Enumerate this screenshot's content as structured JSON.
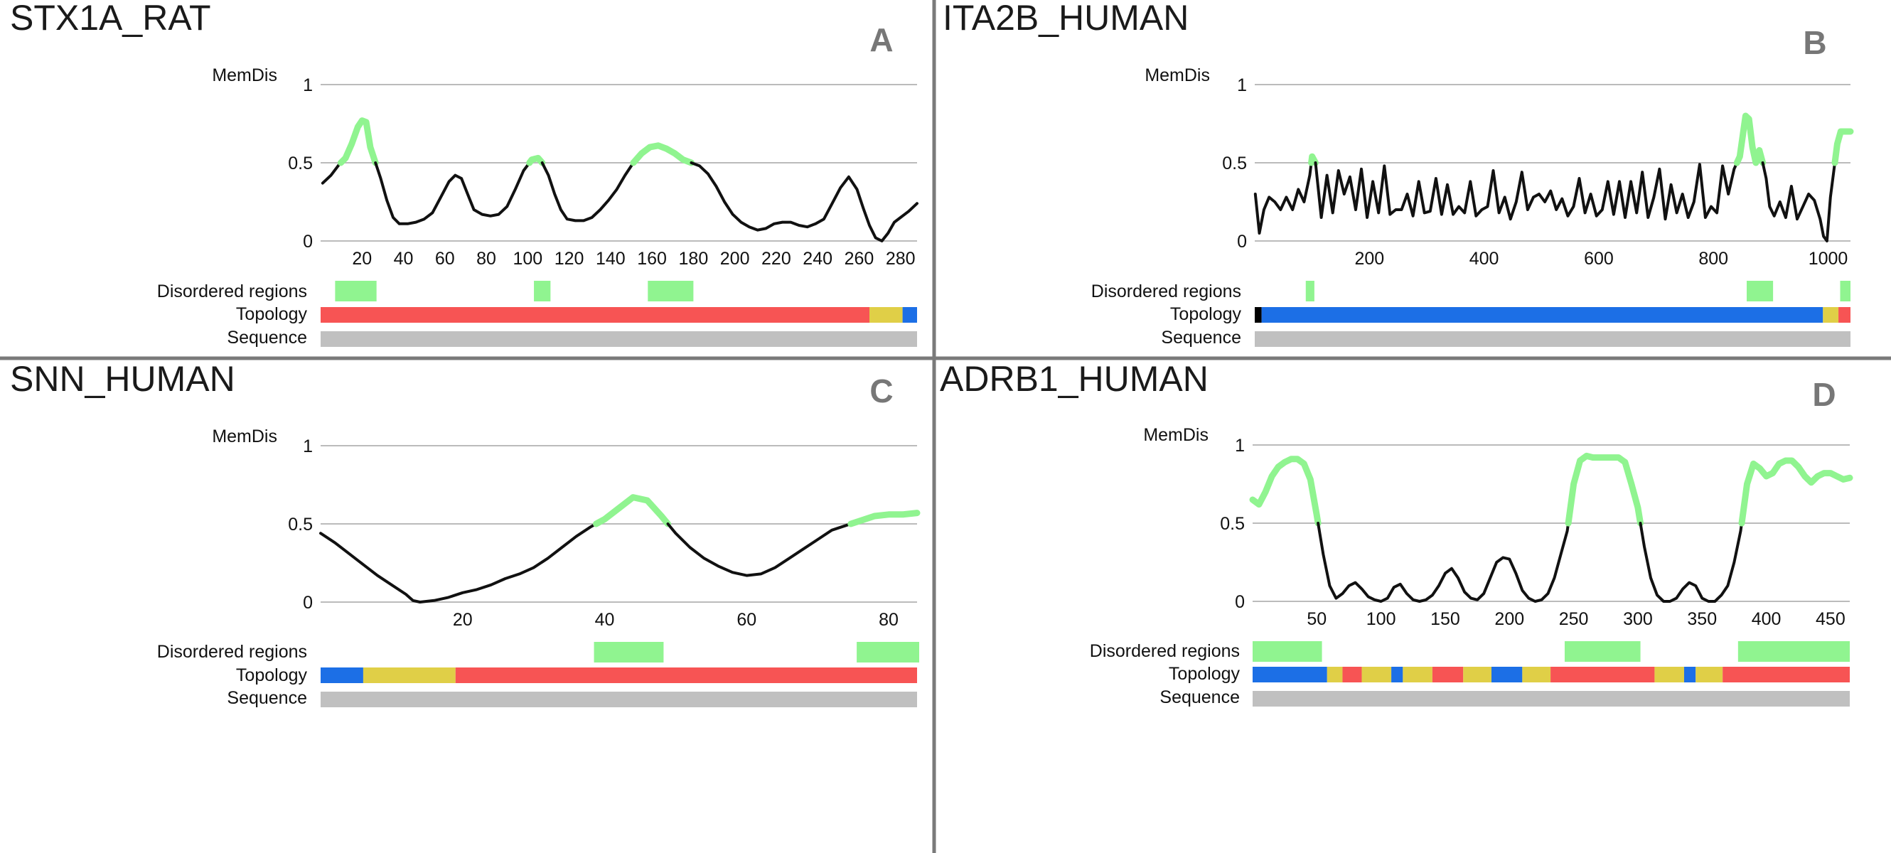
{
  "figure": {
    "divider_color": "#7a7a7a",
    "colors": {
      "curve": "#111111",
      "disordered": "#90f490",
      "sequence": "#c0c0c0",
      "gridline": "#bbbbbb",
      "topology": {
        "red": "#f75454",
        "yellow": "#e0cf47",
        "blue": "#1c6fe6",
        "black": "#000000"
      }
    },
    "track_labels": {
      "disordered": "Disordered regions",
      "topology": "Topology",
      "sequence": "Sequence"
    }
  },
  "chart_data": [
    {
      "type": "line",
      "panel_letter": "A",
      "protein": "STX1A_RAT",
      "ylabel": "MemDis",
      "ylim": [
        0,
        1
      ],
      "yticks": [
        0,
        0.5,
        1
      ],
      "ytick_labels": [
        "0",
        "0.5",
        "1"
      ],
      "xlim": [
        0,
        288
      ],
      "xticks": [
        20,
        40,
        60,
        80,
        100,
        120,
        140,
        160,
        180,
        200,
        220,
        240,
        260,
        280
      ],
      "xtick_labels": [
        "20",
        "40",
        "60",
        "80",
        "100",
        "120",
        "140",
        "160",
        "180",
        "200",
        "220",
        "240",
        "260",
        "280"
      ],
      "threshold": 0.5,
      "series": [
        {
          "name": "MemDis",
          "x": [
            1,
            5,
            9,
            12,
            15,
            18,
            20,
            22,
            24,
            26,
            29,
            32,
            35,
            38,
            42,
            46,
            50,
            54,
            58,
            62,
            65,
            68,
            71,
            74,
            78,
            82,
            86,
            90,
            94,
            98,
            102,
            105,
            107,
            110,
            113,
            116,
            119,
            123,
            127,
            131,
            135,
            139,
            143,
            147,
            151,
            155,
            159,
            163,
            167,
            171,
            175,
            179,
            183,
            187,
            191,
            195,
            199,
            203,
            207,
            211,
            215,
            219,
            223,
            227,
            231,
            235,
            239,
            243,
            247,
            251,
            255,
            259,
            262,
            265,
            268,
            271,
            274,
            277,
            280,
            284,
            288
          ],
          "y": [
            0.37,
            0.42,
            0.49,
            0.53,
            0.62,
            0.73,
            0.77,
            0.76,
            0.6,
            0.52,
            0.4,
            0.26,
            0.15,
            0.11,
            0.11,
            0.12,
            0.14,
            0.18,
            0.28,
            0.38,
            0.42,
            0.4,
            0.3,
            0.2,
            0.17,
            0.16,
            0.17,
            0.22,
            0.33,
            0.45,
            0.52,
            0.53,
            0.5,
            0.42,
            0.3,
            0.2,
            0.14,
            0.13,
            0.13,
            0.15,
            0.2,
            0.26,
            0.33,
            0.42,
            0.5,
            0.56,
            0.6,
            0.61,
            0.59,
            0.56,
            0.52,
            0.5,
            0.48,
            0.43,
            0.35,
            0.25,
            0.17,
            0.12,
            0.09,
            0.07,
            0.08,
            0.11,
            0.12,
            0.12,
            0.1,
            0.09,
            0.11,
            0.14,
            0.24,
            0.34,
            0.41,
            0.33,
            0.21,
            0.1,
            0.02,
            0.0,
            0.05,
            0.12,
            0.15,
            0.19,
            0.24
          ]
        }
      ],
      "disordered_regions": [
        [
          7,
          27
        ],
        [
          103,
          111
        ],
        [
          158,
          180
        ]
      ],
      "topology": [
        {
          "start": 0,
          "end": 265,
          "color": "red"
        },
        {
          "start": 265,
          "end": 281,
          "color": "yellow"
        },
        {
          "start": 281,
          "end": 288,
          "color": "blue"
        }
      ]
    },
    {
      "type": "line",
      "panel_letter": "B",
      "protein": "ITA2B_HUMAN",
      "ylabel": "MemDis",
      "ylim": [
        0,
        1
      ],
      "yticks": [
        0,
        0.5,
        1
      ],
      "ytick_labels": [
        "0",
        "0.5",
        "1"
      ],
      "xlim": [
        0,
        1039
      ],
      "xticks": [
        200,
        400,
        600,
        800,
        1000
      ],
      "xtick_labels": [
        "200",
        "400",
        "600",
        "800",
        "1000"
      ],
      "threshold": 0.5,
      "series": [
        {
          "name": "MemDis",
          "x": [
            1,
            8,
            16,
            25,
            35,
            45,
            55,
            66,
            76,
            86,
            96,
            100,
            106,
            116,
            126,
            136,
            146,
            156,
            166,
            176,
            186,
            196,
            206,
            216,
            226,
            236,
            246,
            256,
            266,
            276,
            286,
            296,
            306,
            316,
            326,
            336,
            346,
            356,
            366,
            376,
            386,
            396,
            406,
            416,
            426,
            436,
            446,
            456,
            466,
            476,
            486,
            496,
            506,
            516,
            526,
            536,
            546,
            556,
            566,
            576,
            586,
            596,
            606,
            616,
            626,
            636,
            646,
            656,
            666,
            676,
            686,
            696,
            706,
            716,
            726,
            736,
            746,
            756,
            766,
            776,
            786,
            796,
            806,
            816,
            826,
            836,
            846,
            856,
            862,
            868,
            874,
            880,
            886,
            892,
            898,
            906,
            916,
            926,
            936,
            946,
            956,
            966,
            976,
            986,
            992,
            998,
            1004,
            1010,
            1016,
            1022,
            1030,
            1039
          ],
          "y": [
            0.3,
            0.05,
            0.2,
            0.28,
            0.25,
            0.2,
            0.28,
            0.2,
            0.33,
            0.25,
            0.42,
            0.54,
            0.5,
            0.15,
            0.42,
            0.18,
            0.45,
            0.3,
            0.41,
            0.2,
            0.46,
            0.15,
            0.38,
            0.18,
            0.48,
            0.17,
            0.2,
            0.2,
            0.3,
            0.16,
            0.38,
            0.18,
            0.19,
            0.4,
            0.17,
            0.36,
            0.17,
            0.22,
            0.18,
            0.38,
            0.16,
            0.2,
            0.22,
            0.45,
            0.18,
            0.28,
            0.14,
            0.25,
            0.44,
            0.2,
            0.28,
            0.3,
            0.25,
            0.32,
            0.2,
            0.27,
            0.16,
            0.22,
            0.4,
            0.18,
            0.3,
            0.16,
            0.2,
            0.38,
            0.17,
            0.38,
            0.15,
            0.38,
            0.18,
            0.44,
            0.15,
            0.28,
            0.46,
            0.14,
            0.36,
            0.18,
            0.3,
            0.15,
            0.25,
            0.49,
            0.15,
            0.22,
            0.18,
            0.48,
            0.3,
            0.46,
            0.54,
            0.8,
            0.78,
            0.6,
            0.5,
            0.58,
            0.5,
            0.4,
            0.22,
            0.16,
            0.25,
            0.15,
            0.35,
            0.14,
            0.22,
            0.3,
            0.26,
            0.14,
            0.03,
            0.0,
            0.28,
            0.45,
            0.62,
            0.7,
            0.7,
            0.7
          ]
        }
      ],
      "disordered_regions": [
        [
          89,
          104
        ],
        [
          858,
          904
        ],
        [
          1021,
          1039
        ]
      ],
      "topology": [
        {
          "start": 0,
          "end": 12,
          "color": "black"
        },
        {
          "start": 12,
          "end": 991,
          "color": "blue"
        },
        {
          "start": 991,
          "end": 1018,
          "color": "yellow"
        },
        {
          "start": 1018,
          "end": 1039,
          "color": "red"
        }
      ]
    },
    {
      "type": "line",
      "panel_letter": "C",
      "protein": "SNN_HUMAN",
      "ylabel": "MemDis",
      "ylim": [
        0,
        1
      ],
      "yticks": [
        0,
        0.5,
        1
      ],
      "ytick_labels": [
        "0",
        "0.5",
        "1"
      ],
      "xlim": [
        0,
        84
      ],
      "xticks": [
        20,
        40,
        60,
        80
      ],
      "xtick_labels": [
        "20",
        "40",
        "60",
        "80"
      ],
      "threshold": 0.5,
      "series": [
        {
          "name": "MemDis",
          "x": [
            0,
            2,
            4,
            6,
            8,
            10,
            12,
            13,
            14,
            16,
            18,
            20,
            22,
            24,
            26,
            28,
            30,
            32,
            34,
            36,
            38,
            40,
            42,
            44,
            46,
            48,
            50,
            52,
            54,
            56,
            58,
            60,
            62,
            64,
            66,
            68,
            70,
            72,
            74,
            76,
            78,
            80,
            82,
            84
          ],
          "y": [
            0.44,
            0.38,
            0.31,
            0.24,
            0.17,
            0.11,
            0.05,
            0.01,
            0.0,
            0.01,
            0.03,
            0.06,
            0.08,
            0.11,
            0.15,
            0.18,
            0.22,
            0.28,
            0.35,
            0.42,
            0.48,
            0.53,
            0.6,
            0.67,
            0.65,
            0.55,
            0.44,
            0.35,
            0.28,
            0.23,
            0.19,
            0.17,
            0.18,
            0.22,
            0.28,
            0.34,
            0.4,
            0.46,
            0.49,
            0.52,
            0.55,
            0.56,
            0.56,
            0.57
          ]
        }
      ],
      "disordered_regions": [
        [
          38.5,
          48.3
        ],
        [
          75.5,
          84.3
        ]
      ],
      "topology": [
        {
          "start": 0,
          "end": 6,
          "color": "blue"
        },
        {
          "start": 6,
          "end": 19,
          "color": "yellow"
        },
        {
          "start": 19,
          "end": 84,
          "color": "red"
        }
      ]
    },
    {
      "type": "line",
      "panel_letter": "D",
      "protein": "ADRB1_HUMAN",
      "ylabel": "MemDis",
      "ylim": [
        0,
        1
      ],
      "yticks": [
        0,
        0.5,
        1
      ],
      "ytick_labels": [
        "0",
        "0.5",
        "1"
      ],
      "xlim": [
        0,
        465
      ],
      "xticks": [
        50,
        100,
        150,
        200,
        250,
        300,
        350,
        400,
        450
      ],
      "xtick_labels": [
        "50",
        "100",
        "150",
        "200",
        "250",
        "300",
        "350",
        "400",
        "450"
      ],
      "threshold": 0.5,
      "series": [
        {
          "name": "MemDis",
          "x": [
            0,
            5,
            10,
            15,
            20,
            25,
            30,
            35,
            40,
            45,
            50,
            55,
            60,
            65,
            70,
            75,
            80,
            85,
            90,
            95,
            100,
            105,
            110,
            115,
            120,
            125,
            130,
            135,
            140,
            145,
            150,
            155,
            160,
            165,
            170,
            175,
            180,
            185,
            190,
            195,
            200,
            205,
            210,
            215,
            220,
            225,
            230,
            235,
            240,
            245,
            250,
            255,
            260,
            265,
            270,
            275,
            280,
            285,
            290,
            295,
            300,
            305,
            310,
            315,
            320,
            325,
            330,
            335,
            340,
            345,
            350,
            355,
            360,
            365,
            370,
            375,
            380,
            385,
            390,
            395,
            400,
            405,
            410,
            415,
            420,
            425,
            430,
            435,
            440,
            445,
            450,
            455,
            460,
            465
          ],
          "y": [
            0.65,
            0.62,
            0.7,
            0.8,
            0.86,
            0.89,
            0.91,
            0.91,
            0.88,
            0.78,
            0.55,
            0.3,
            0.1,
            0.02,
            0.05,
            0.1,
            0.12,
            0.08,
            0.03,
            0.01,
            0.0,
            0.02,
            0.09,
            0.11,
            0.05,
            0.01,
            0.0,
            0.01,
            0.04,
            0.1,
            0.18,
            0.21,
            0.15,
            0.06,
            0.02,
            0.01,
            0.05,
            0.15,
            0.25,
            0.28,
            0.27,
            0.18,
            0.07,
            0.02,
            0.0,
            0.01,
            0.05,
            0.15,
            0.3,
            0.45,
            0.75,
            0.9,
            0.93,
            0.92,
            0.92,
            0.92,
            0.92,
            0.92,
            0.89,
            0.75,
            0.6,
            0.35,
            0.15,
            0.04,
            0.0,
            0.0,
            0.02,
            0.08,
            0.12,
            0.1,
            0.02,
            0.0,
            0.0,
            0.04,
            0.1,
            0.25,
            0.45,
            0.75,
            0.88,
            0.85,
            0.8,
            0.82,
            0.88,
            0.9,
            0.9,
            0.86,
            0.8,
            0.76,
            0.8,
            0.82,
            0.82,
            0.8,
            0.78,
            0.79
          ]
        }
      ],
      "disordered_regions": [
        [
          0,
          54
        ],
        [
          243,
          302
        ],
        [
          378,
          465
        ]
      ],
      "topology": [
        {
          "start": 0,
          "end": 58,
          "color": "blue"
        },
        {
          "start": 58,
          "end": 70,
          "color": "yellow"
        },
        {
          "start": 70,
          "end": 85,
          "color": "red"
        },
        {
          "start": 85,
          "end": 108,
          "color": "yellow"
        },
        {
          "start": 108,
          "end": 117,
          "color": "blue"
        },
        {
          "start": 117,
          "end": 140,
          "color": "yellow"
        },
        {
          "start": 140,
          "end": 164,
          "color": "red"
        },
        {
          "start": 164,
          "end": 186,
          "color": "yellow"
        },
        {
          "start": 186,
          "end": 210,
          "color": "blue"
        },
        {
          "start": 210,
          "end": 232,
          "color": "yellow"
        },
        {
          "start": 232,
          "end": 313,
          "color": "red"
        },
        {
          "start": 313,
          "end": 336,
          "color": "yellow"
        },
        {
          "start": 336,
          "end": 345,
          "color": "blue"
        },
        {
          "start": 345,
          "end": 366,
          "color": "yellow"
        },
        {
          "start": 366,
          "end": 465,
          "color": "red"
        }
      ]
    }
  ]
}
